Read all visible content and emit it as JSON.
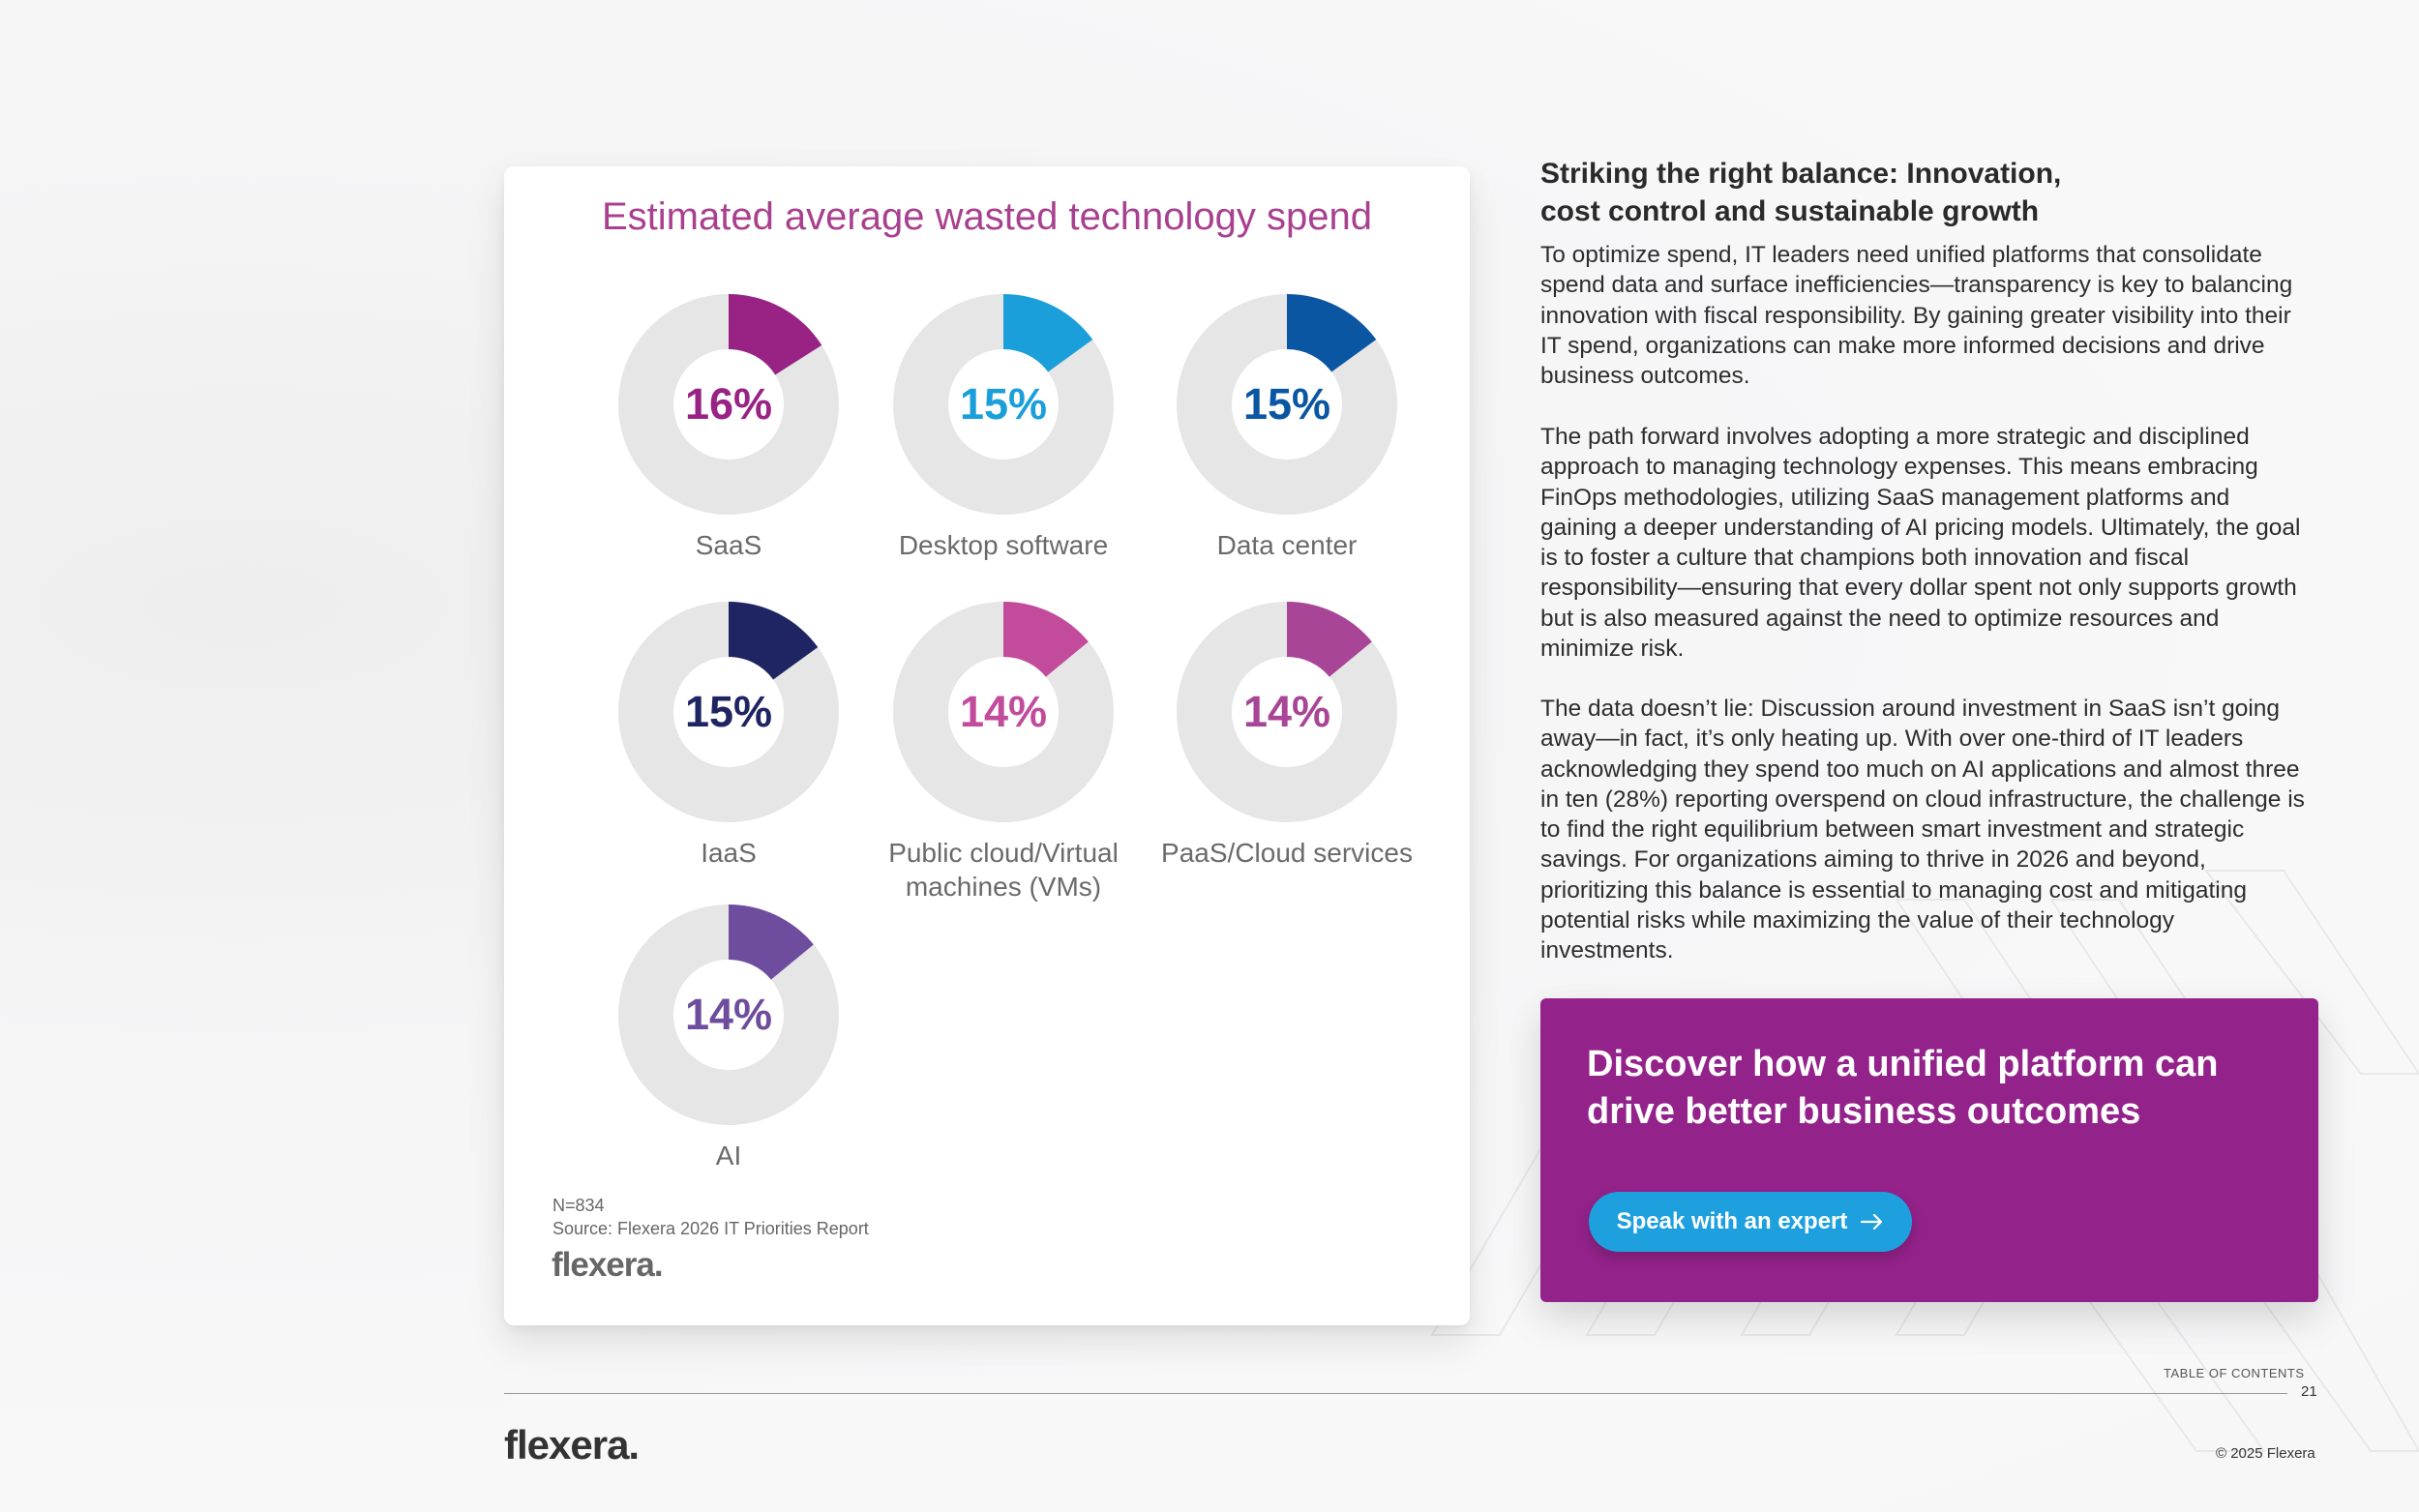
{
  "colors": {
    "card_title": "#a8408f",
    "donut_track": "#e6e6e6",
    "cta_background": "#94228b",
    "cta_button": "#1ea0de"
  },
  "card": {
    "title": "Estimated average wasted technology spend",
    "footnote_n": "N=834",
    "footnote_source": "Source: Flexera 2026 IT Priorities Report",
    "logo": "flexera."
  },
  "chart_data": {
    "type": "pie",
    "title": "Estimated average wasted technology spend",
    "categories": [
      "SaaS",
      "Desktop software",
      "Data center",
      "IaaS",
      "Public cloud/Virtual machines (VMs)",
      "PaaS/Cloud services",
      "AI"
    ],
    "values": [
      16,
      15,
      15,
      15,
      14,
      14,
      14
    ],
    "labels": [
      "16%",
      "15%",
      "15%",
      "15%",
      "14%",
      "14%",
      "14%"
    ],
    "colors": [
      "#982384",
      "#1b9fdb",
      "#0a56a3",
      "#1f2563",
      "#c24b9c",
      "#a84597",
      "#6e4d9e"
    ],
    "unit": "%"
  },
  "article": {
    "heading": "Striking the right balance: Innovation, cost control and sustainable growth",
    "paragraph_1": "To optimize spend, IT leaders need unified platforms that consolidate spend data and surface inefficiencies—transparency is key to balancing innovation with fiscal responsibility. By gaining greater visibility into their IT spend, organizations can make more informed decisions and drive business outcomes.",
    "paragraph_2": "The path forward involves adopting a more strategic and disciplined approach to managing technology expenses. This means embracing FinOps methodologies, utilizing SaaS management platforms and gaining a deeper understanding of AI pricing models. Ultimately, the goal is to foster a culture that champions both innovation and fiscal responsibility—ensuring that every dollar spent not only supports growth but is also measured against the need to optimize resources and minimize risk.",
    "paragraph_3": "The data doesn’t lie: Discussion around investment in SaaS isn’t going away—in fact, it’s only heating up. With over one-third of IT leaders acknowledging they spend too much on AI applications and almost three in ten (28%) reporting overspend on cloud infrastructure, the challenge is to find the right equilibrium between smart investment and strategic savings. For organizations aiming to thrive in 2026 and beyond, prioritizing this balance is essential to managing cost and mitigating potential risks while maximizing the value of their technology investments."
  },
  "cta": {
    "title": "Discover how a unified platform can drive better business outcomes",
    "button_label": "Speak with an expert",
    "button_icon": "arrow-right-icon"
  },
  "footer": {
    "toc": "TABLE OF CONTENTS",
    "page_number": "21",
    "logo": "flexera.",
    "copyright": "© 2025 Flexera"
  }
}
